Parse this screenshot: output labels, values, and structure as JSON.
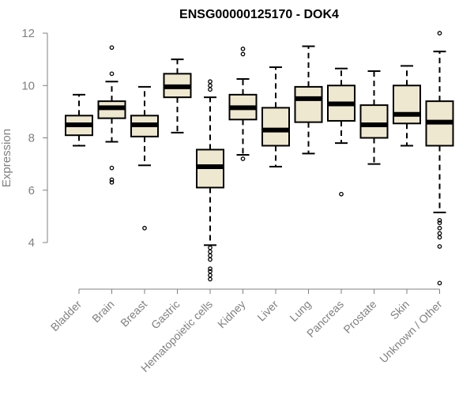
{
  "chart_data": {
    "type": "box",
    "title": "ENSG00000125170 - DOK4",
    "ylabel": "Expression",
    "xlabel": "",
    "ylim": [
      2,
      12
    ],
    "yticks": [
      4,
      6,
      8,
      10,
      12
    ],
    "box_fill": "#efe8d0",
    "categories": [
      "Bladder",
      "Brain",
      "Breast",
      "Gastric",
      "Hematopoietic cells",
      "Kidney",
      "Liver",
      "Lung",
      "Pancreas",
      "Prostate",
      "Skin",
      "Unknown / Other"
    ],
    "boxes": [
      {
        "category": "Bladder",
        "whisker_low": 7.7,
        "q1": 8.1,
        "median": 8.5,
        "q3": 8.85,
        "whisker_high": 9.65,
        "outliers": []
      },
      {
        "category": "Brain",
        "whisker_low": 7.85,
        "q1": 8.75,
        "median": 9.15,
        "q3": 9.4,
        "whisker_high": 10.15,
        "outliers": [
          6.3,
          6.4,
          6.85,
          10.45,
          11.45
        ]
      },
      {
        "category": "Breast",
        "whisker_low": 6.95,
        "q1": 8.05,
        "median": 8.5,
        "q3": 8.85,
        "whisker_high": 9.95,
        "outliers": [
          4.55
        ]
      },
      {
        "category": "Gastric",
        "whisker_low": 8.2,
        "q1": 9.55,
        "median": 9.95,
        "q3": 10.45,
        "whisker_high": 11.0,
        "outliers": []
      },
      {
        "category": "Hematopoietic cells",
        "whisker_low": 3.9,
        "q1": 6.1,
        "median": 6.9,
        "q3": 7.55,
        "whisker_high": 9.55,
        "outliers": [
          2.6,
          2.75,
          2.9,
          3.0,
          3.35,
          3.5,
          3.65,
          3.8,
          9.85,
          10.0,
          10.15
        ]
      },
      {
        "category": "Kidney",
        "whisker_low": 7.35,
        "q1": 8.7,
        "median": 9.15,
        "q3": 9.65,
        "whisker_high": 10.25,
        "outliers": [
          7.2,
          11.2,
          11.4
        ]
      },
      {
        "category": "Liver",
        "whisker_low": 6.9,
        "q1": 7.7,
        "median": 8.3,
        "q3": 9.15,
        "whisker_high": 10.7,
        "outliers": []
      },
      {
        "category": "Lung",
        "whisker_low": 7.4,
        "q1": 8.6,
        "median": 9.5,
        "q3": 9.95,
        "whisker_high": 11.5,
        "outliers": []
      },
      {
        "category": "Pancreas",
        "whisker_low": 7.8,
        "q1": 8.65,
        "median": 9.3,
        "q3": 10.0,
        "whisker_high": 10.65,
        "outliers": [
          5.85
        ]
      },
      {
        "category": "Prostate",
        "whisker_low": 7.0,
        "q1": 8.0,
        "median": 8.5,
        "q3": 9.25,
        "whisker_high": 10.55,
        "outliers": []
      },
      {
        "category": "Skin",
        "whisker_low": 7.7,
        "q1": 8.55,
        "median": 8.9,
        "q3": 10.0,
        "whisker_high": 10.75,
        "outliers": []
      },
      {
        "category": "Unknown / Other",
        "whisker_low": 5.15,
        "q1": 7.7,
        "median": 8.6,
        "q3": 9.4,
        "whisker_high": 11.3,
        "outliers": [
          2.45,
          3.85,
          4.2,
          4.35,
          4.55,
          4.75,
          4.85,
          12.0
        ]
      }
    ]
  }
}
